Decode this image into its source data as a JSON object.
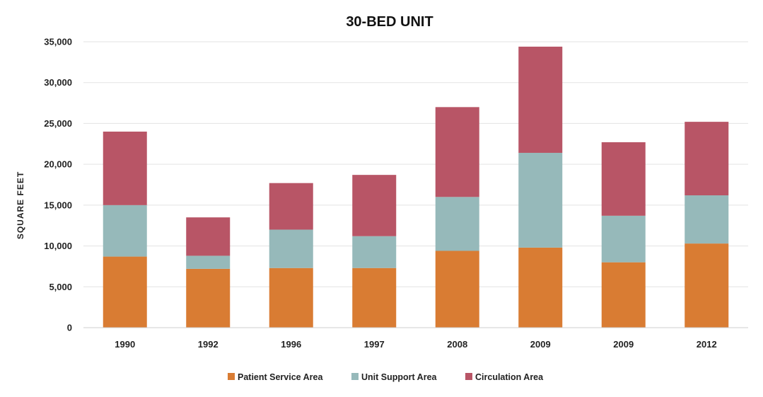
{
  "chart_data": {
    "type": "bar",
    "stacked": true,
    "title": "30-BED UNIT",
    "ylabel": "SQUARE FEET",
    "xlabel": "",
    "ylim": [
      0,
      35000
    ],
    "yticks": [
      "0",
      "5,000",
      "10,000",
      "15,000",
      "20,000",
      "25,000",
      "30,000",
      "35,000"
    ],
    "ytick_values": [
      0,
      5000,
      10000,
      15000,
      20000,
      25000,
      30000,
      35000
    ],
    "grid": true,
    "legend_position": "bottom",
    "categories": [
      "1990",
      "1992",
      "1996",
      "1997",
      "2008",
      "2009",
      "2009",
      "2012"
    ],
    "series": [
      {
        "name": "Patient Service Area",
        "color": "#d97c33",
        "values": [
          8700,
          7200,
          7300,
          7300,
          9400,
          9800,
          8000,
          10300
        ]
      },
      {
        "name": "Unit Support Area",
        "color": "#96b9ba",
        "values": [
          6300,
          1600,
          4700,
          3900,
          6600,
          11600,
          5700,
          5900
        ]
      },
      {
        "name": "Circulation Area",
        "color": "#b85566",
        "values": [
          9000,
          4700,
          5700,
          7500,
          11000,
          13000,
          9000,
          9000
        ]
      }
    ]
  }
}
